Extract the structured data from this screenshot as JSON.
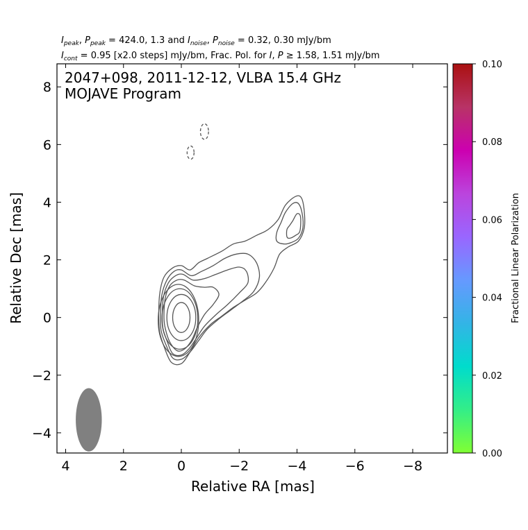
{
  "header": {
    "line1": {
      "i_peak": "I",
      "i_peak_sub": "peak",
      "sep1": ", ",
      "p_peak": "P",
      "p_peak_sub": "peak",
      "mid1": " = 424.0, 1.3 and ",
      "i_noise": "I",
      "i_noise_sub": "noise",
      "sep2": ", ",
      "p_noise": "P",
      "p_noise_sub": "noise",
      "mid2": " = 0.32, 0.30 mJy/bm"
    },
    "line2": {
      "i_cont": "I",
      "i_cont_sub": "cont",
      "mid1": " = 0.95 [x2.0 steps] mJy/bm, Frac. Pol. for ",
      "i": "I",
      "sep": ", ",
      "p": "P",
      "mid2": " ≥ 1.58, 1.51 mJy/bm"
    }
  },
  "chart_data": {
    "type": "contour",
    "title_line1": "2047+098, 2011-12-12, VLBA 15.4 GHz",
    "title_line2": "MOJAVE Program",
    "xlabel": "Relative RA [mas]",
    "ylabel": "Relative Dec [mas]",
    "xlim": [
      4.3,
      -9.2
    ],
    "ylim": [
      -4.7,
      8.8
    ],
    "xticks": [
      4,
      2,
      0,
      -2,
      -4,
      -6,
      -8
    ],
    "xtick_labels": [
      "4",
      "2",
      "0",
      "−2",
      "−4",
      "−6",
      "−8"
    ],
    "yticks": [
      -4,
      -2,
      0,
      2,
      4,
      6,
      8
    ],
    "ytick_labels": [
      "−4",
      "−2",
      "0",
      "2",
      "4",
      "6",
      "8"
    ],
    "contour_color": "#555555",
    "beam": {
      "x": 3.2,
      "y": -3.55,
      "major": 1.1,
      "minor": 0.45,
      "pa_deg": 0,
      "color": "#808080"
    },
    "negative_contours": [
      {
        "x": -0.8,
        "y": 6.45,
        "rx": 0.14,
        "ry": 0.27
      },
      {
        "x": -0.32,
        "y": 5.72,
        "rx": 0.12,
        "ry": 0.23
      }
    ],
    "core_contours": [
      {
        "x": 0.0,
        "y": 0.0,
        "rx": 0.3,
        "ry": 0.52
      },
      {
        "x": 0.0,
        "y": 0.0,
        "rx": 0.5,
        "ry": 0.8
      },
      {
        "x": 0.05,
        "y": -0.05,
        "rx": 0.62,
        "ry": 1.05
      },
      {
        "x": 0.1,
        "y": -0.1,
        "rx": 0.7,
        "ry": 1.25
      }
    ],
    "jet_contours": [
      [
        [
          0.78,
          0.0
        ],
        [
          0.75,
          0.8
        ],
        [
          0.6,
          1.4
        ],
        [
          0.3,
          1.72
        ],
        [
          0.0,
          1.8
        ],
        [
          -0.3,
          1.65
        ],
        [
          -0.6,
          1.9
        ],
        [
          -0.9,
          2.05
        ],
        [
          -1.4,
          2.3
        ],
        [
          -1.8,
          2.55
        ],
        [
          -2.2,
          2.65
        ],
        [
          -2.6,
          2.85
        ],
        [
          -3.0,
          3.05
        ],
        [
          -3.35,
          3.4
        ],
        [
          -3.6,
          3.9
        ],
        [
          -3.95,
          4.2
        ],
        [
          -4.15,
          4.15
        ],
        [
          -4.25,
          3.7
        ],
        [
          -4.25,
          3.1
        ],
        [
          -4.05,
          2.65
        ],
        [
          -3.7,
          2.45
        ],
        [
          -3.4,
          2.2
        ],
        [
          -3.2,
          1.7
        ],
        [
          -2.9,
          1.2
        ],
        [
          -2.6,
          0.85
        ],
        [
          -2.2,
          0.6
        ],
        [
          -1.8,
          0.35
        ],
        [
          -1.4,
          0.05
        ],
        [
          -1.0,
          -0.25
        ],
        [
          -0.6,
          -0.7
        ],
        [
          -0.3,
          -1.2
        ],
        [
          0.0,
          -1.6
        ],
        [
          0.35,
          -1.55
        ],
        [
          0.6,
          -1.0
        ],
        [
          0.75,
          -0.5
        ]
      ],
      [
        [
          0.72,
          0.0
        ],
        [
          0.68,
          0.75
        ],
        [
          0.5,
          1.3
        ],
        [
          0.25,
          1.6
        ],
        [
          0.0,
          1.65
        ],
        [
          -0.35,
          1.45
        ],
        [
          -0.7,
          1.6
        ],
        [
          -1.1,
          1.8
        ],
        [
          -1.5,
          2.05
        ],
        [
          -1.9,
          2.2
        ],
        [
          -2.3,
          2.2
        ],
        [
          -2.6,
          1.9
        ],
        [
          -2.7,
          1.4
        ],
        [
          -2.5,
          0.9
        ],
        [
          -2.1,
          0.55
        ],
        [
          -1.7,
          0.25
        ],
        [
          -1.3,
          -0.05
        ],
        [
          -0.9,
          -0.4
        ],
        [
          -0.6,
          -0.8
        ],
        [
          -0.3,
          -1.2
        ],
        [
          0.0,
          -1.45
        ],
        [
          0.3,
          -1.4
        ],
        [
          0.55,
          -0.9
        ],
        [
          0.7,
          -0.45
        ]
      ],
      [
        [
          0.66,
          0.0
        ],
        [
          0.62,
          0.7
        ],
        [
          0.45,
          1.2
        ],
        [
          0.2,
          1.45
        ],
        [
          -0.05,
          1.5
        ],
        [
          -0.4,
          1.3
        ],
        [
          -0.8,
          1.35
        ],
        [
          -1.2,
          1.5
        ],
        [
          -1.6,
          1.65
        ],
        [
          -2.0,
          1.75
        ],
        [
          -2.25,
          1.6
        ],
        [
          -2.3,
          1.2
        ],
        [
          -2.0,
          0.85
        ],
        [
          -1.6,
          0.45
        ],
        [
          -1.2,
          0.1
        ],
        [
          -0.8,
          -0.3
        ],
        [
          -0.5,
          -0.75
        ],
        [
          -0.25,
          -1.1
        ],
        [
          0.0,
          -1.3
        ],
        [
          0.3,
          -1.25
        ],
        [
          0.5,
          -0.8
        ],
        [
          0.63,
          -0.4
        ]
      ],
      [
        [
          0.6,
          0.0
        ],
        [
          0.56,
          0.65
        ],
        [
          0.4,
          1.1
        ],
        [
          0.15,
          1.3
        ],
        [
          -0.1,
          1.3
        ],
        [
          -0.45,
          1.1
        ],
        [
          -0.8,
          1.05
        ],
        [
          -1.1,
          1.05
        ],
        [
          -1.3,
          0.8
        ],
        [
          -1.1,
          0.45
        ],
        [
          -0.8,
          0.1
        ],
        [
          -0.55,
          -0.35
        ],
        [
          -0.35,
          -0.8
        ],
        [
          -0.1,
          -1.1
        ],
        [
          0.15,
          -1.15
        ],
        [
          0.4,
          -0.85
        ],
        [
          0.55,
          -0.4
        ]
      ],
      [
        [
          -3.85,
          3.35
        ],
        [
          -4.0,
          3.6
        ],
        [
          -4.12,
          3.5
        ],
        [
          -4.1,
          3.0
        ],
        [
          -3.95,
          2.85
        ],
        [
          -3.75,
          2.75
        ],
        [
          -3.65,
          2.8
        ],
        [
          -3.65,
          3.05
        ],
        [
          -3.75,
          3.2
        ]
      ],
      [
        [
          -3.6,
          3.65
        ],
        [
          -3.85,
          3.95
        ],
        [
          -4.05,
          3.95
        ],
        [
          -4.18,
          3.6
        ],
        [
          -4.2,
          3.1
        ],
        [
          -4.05,
          2.75
        ],
        [
          -3.8,
          2.6
        ],
        [
          -3.55,
          2.55
        ],
        [
          -3.3,
          2.65
        ],
        [
          -3.3,
          2.95
        ],
        [
          -3.45,
          3.3
        ]
      ]
    ],
    "colorbar": {
      "label": "Fractional Linear Polarization",
      "range": [
        0.0,
        0.1
      ],
      "ticks": [
        0.0,
        0.02,
        0.04,
        0.06,
        0.08,
        0.1
      ],
      "tick_labels": [
        "0.00",
        "0.02",
        "0.04",
        "0.06",
        "0.08",
        "0.10"
      ],
      "colors": [
        "#80ff33",
        "#33ee88",
        "#00dccc",
        "#33b4e6",
        "#6699ff",
        "#9966ff",
        "#bb44dd",
        "#cc00b0",
        "#b83366",
        "#aa1111"
      ]
    }
  }
}
